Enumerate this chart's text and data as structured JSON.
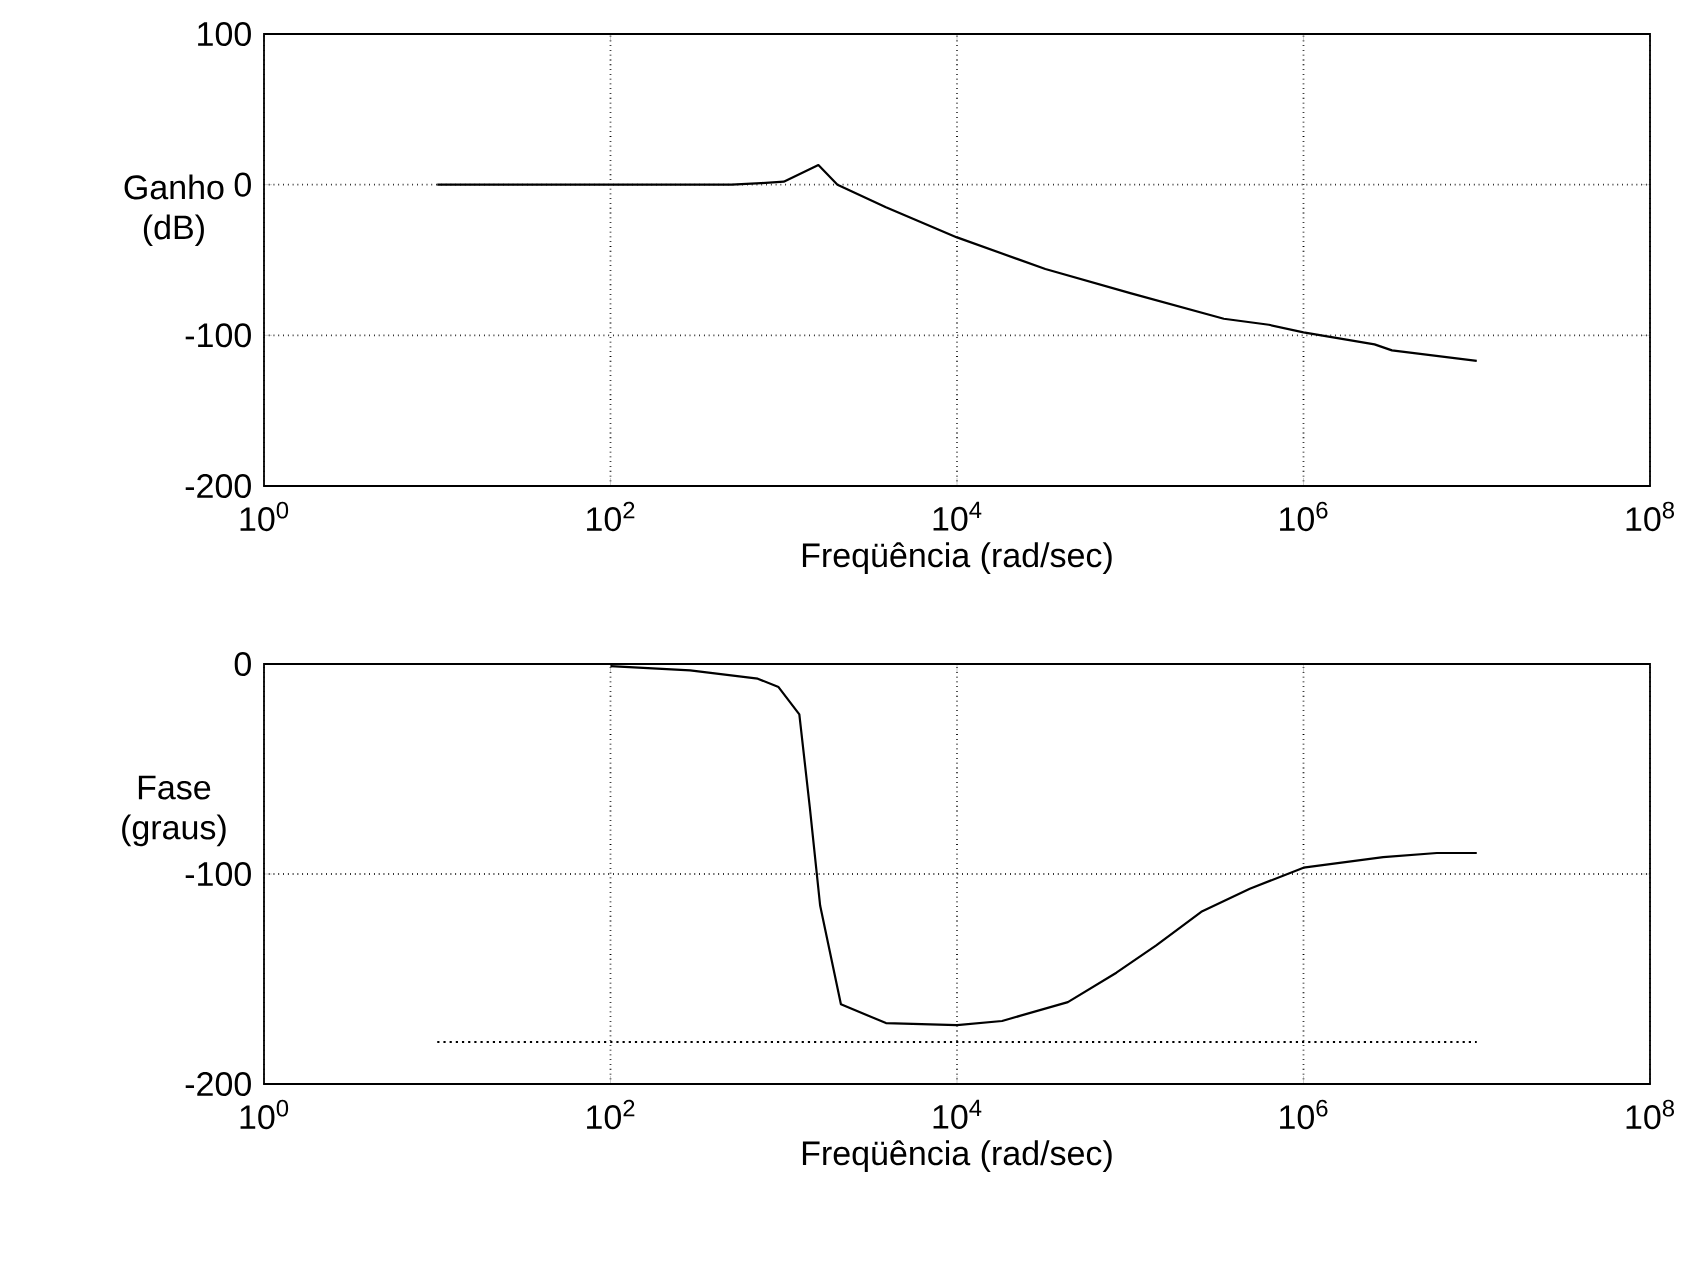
{
  "chart_data": [
    {
      "type": "line",
      "ylabel": "Ganho (dB)",
      "xlabel": "Freqüência (rad/sec)",
      "log": "x",
      "grid": true,
      "xlim": [
        1,
        100000000
      ],
      "ylim": [
        -200,
        100
      ],
      "xticks": [
        {
          "value": 1,
          "label": "10$^{0}$"
        },
        {
          "value": 100,
          "label": "10$^{2}$"
        },
        {
          "value": 10000,
          "label": "10$^{4}$"
        },
        {
          "value": 1000000,
          "label": "10$^{6}$"
        },
        {
          "value": 100000000,
          "label": "10$^{8}$"
        }
      ],
      "yticks": [
        -200,
        -100,
        0,
        100
      ],
      "series": [
        {
          "color": "#000000",
          "line_style": "solid",
          "x": [
            10,
            100,
            500,
            741,
            1000,
            1585,
            2042,
            3890,
            10000,
            32359,
            100000,
            346737,
            631000,
            1000000,
            2570000,
            3240000,
            10000000
          ],
          "values": [
            0,
            0,
            0,
            1,
            2,
            13,
            0,
            -15,
            -35,
            -56,
            -72,
            -89,
            -93,
            -98,
            -106,
            -110,
            -117
          ]
        }
      ]
    },
    {
      "type": "line",
      "ylabel": "Fase (graus)",
      "xlabel": "Freqüência (rad/sec)",
      "log": "x",
      "grid": true,
      "xlim": [
        1,
        100000000
      ],
      "ylim": [
        -200,
        0
      ],
      "xticks": [
        {
          "value": 1,
          "label": "10$^{0}$"
        },
        {
          "value": 100,
          "label": "10$^{2}$"
        },
        {
          "value": 10000,
          "label": "10$^{4}$"
        },
        {
          "value": 1000000,
          "label": "10$^{6}$"
        },
        {
          "value": 100000000,
          "label": "10$^{8}$"
        }
      ],
      "yticks": [
        -200,
        -100,
        0
      ],
      "series": [
        {
          "color": "#000000",
          "line_style": "solid",
          "x": [
            100,
            288,
            708,
            933,
            1230,
            1413,
            1622,
            2138,
            3890,
            10000,
            18200,
            43650,
            83180,
            141250,
            257000,
            489800,
            1000000,
            2884000,
            5888000,
            10000000
          ],
          "values": [
            -1,
            -3,
            -7,
            -11,
            -24,
            -68,
            -115,
            -162,
            -171,
            -172,
            -170,
            -161,
            -147,
            -134,
            -118,
            -107,
            -97,
            -92,
            -90,
            -90
          ]
        },
        {
          "color": "#000000",
          "line_style": "dotted",
          "x": [
            10,
            10000000
          ],
          "values": [
            -180,
            -180
          ]
        }
      ]
    }
  ]
}
